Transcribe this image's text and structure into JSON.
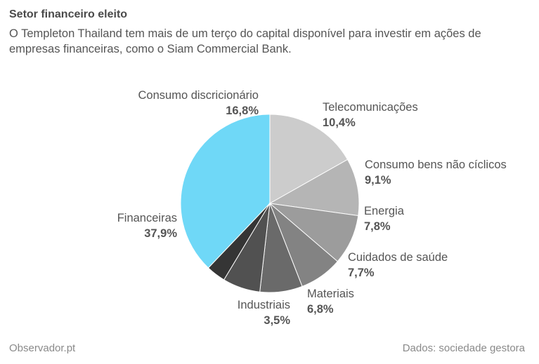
{
  "header": {
    "title": "Setor financeiro eleito",
    "subtitle": "O Templeton Thailand tem mais de um terço do capital disponível para investir em ações de empresas financeiras, como o Siam Commercial Bank."
  },
  "footer": {
    "source_left": "Observador.pt",
    "source_right": "Dados: sociedade gestora"
  },
  "chart_data": {
    "type": "pie",
    "slices": [
      {
        "label": "Financeiras",
        "value": 37.9,
        "display": "37,9%",
        "color": "#6fd8f7"
      },
      {
        "label": "Consumo discricionário",
        "value": 16.8,
        "display": "16,8%",
        "color": "#cccccc"
      },
      {
        "label": "Telecomunicações",
        "value": 10.4,
        "display": "10,4%",
        "color": "#b5b5b5"
      },
      {
        "label": "Consumo bens não cíclicos",
        "value": 9.1,
        "display": "9,1%",
        "color": "#9c9c9c"
      },
      {
        "label": "Energia",
        "value": 7.8,
        "display": "7,8%",
        "color": "#838383"
      },
      {
        "label": "Cuidados de saúde",
        "value": 7.7,
        "display": "7,7%",
        "color": "#6a6a6a"
      },
      {
        "label": "Materiais",
        "value": 6.8,
        "display": "6,8%",
        "color": "#515151"
      },
      {
        "label": "Industriais",
        "value": 3.5,
        "display": "3,5%",
        "color": "#353535"
      }
    ]
  }
}
